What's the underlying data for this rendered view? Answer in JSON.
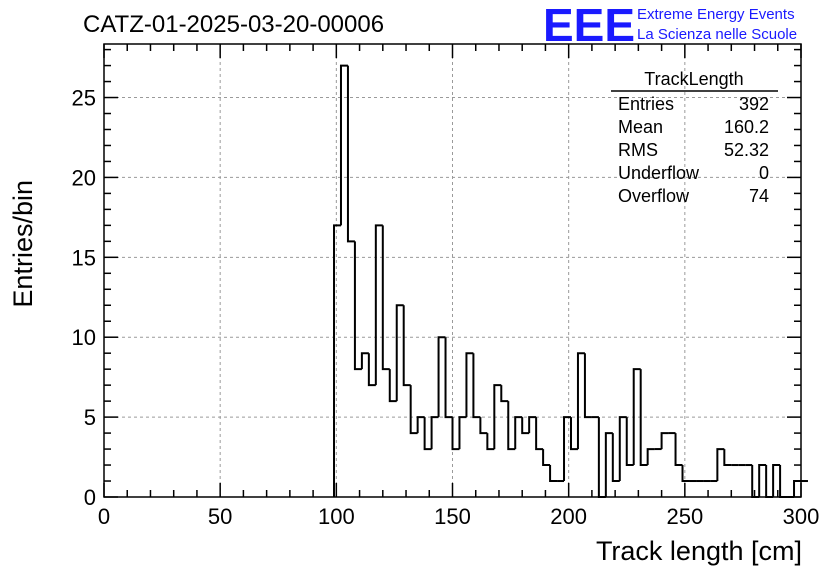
{
  "title": "CATZ-01-2025-03-20-00006",
  "logo": {
    "mark": "EEE",
    "line1": "Extreme Energy Events",
    "line2": "La Scienza nelle Scuole",
    "color": "#1a1aff"
  },
  "stats": {
    "name": "TrackLength",
    "rows": [
      {
        "label": "Entries",
        "value": "392"
      },
      {
        "label": "Mean",
        "value": "160.2"
      },
      {
        "label": "RMS",
        "value": "52.32"
      },
      {
        "label": "Underflow",
        "value": "0"
      },
      {
        "label": "Overflow",
        "value": "74"
      }
    ]
  },
  "chart_data": {
    "type": "bar",
    "style": "step-histogram",
    "xlabel": "Track length [cm]",
    "ylabel": "Entries/bin",
    "xlim": [
      0,
      300
    ],
    "ylim": [
      0,
      28.35
    ],
    "bin_width": 3,
    "xticks": [
      0,
      50,
      100,
      150,
      200,
      250,
      300
    ],
    "yticks": [
      0,
      5,
      10,
      15,
      20,
      25
    ],
    "grid": true,
    "line_color": "#000000",
    "bin_start": 99,
    "values": [
      17,
      27,
      16,
      8,
      9,
      7,
      17,
      8,
      6,
      12,
      7,
      4,
      5,
      3,
      5,
      10,
      5,
      3,
      5,
      9,
      5,
      4,
      3,
      7,
      6,
      3,
      5,
      4,
      5,
      3,
      2,
      1,
      1,
      5,
      3,
      9,
      5,
      5,
      0,
      4,
      1,
      5,
      2,
      8,
      2,
      3,
      3,
      4,
      4,
      2,
      1,
      1,
      1,
      1,
      1,
      3,
      2,
      2,
      2,
      2,
      0,
      2,
      0,
      2,
      0,
      0,
      1,
      1
    ]
  }
}
